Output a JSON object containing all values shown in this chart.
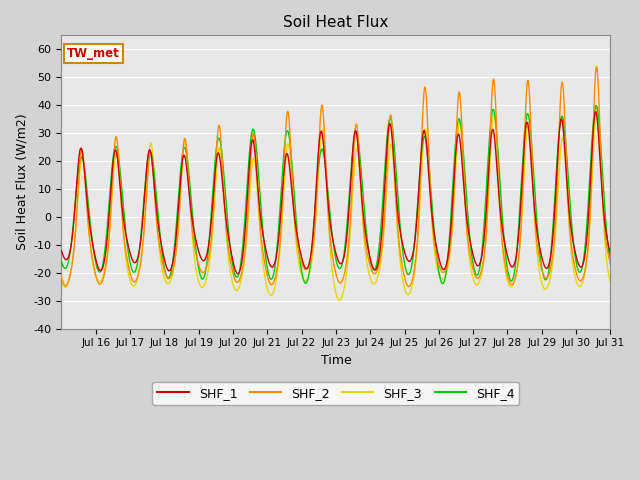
{
  "title": "Soil Heat Flux",
  "xlabel": "Time",
  "ylabel": "Soil Heat Flux (W/m2)",
  "ylim": [
    -40,
    65
  ],
  "background_color": "#d3d3d3",
  "plot_bg_color": "#e8e8e8",
  "grid_color": "#ffffff",
  "annotation_text": "TW_met",
  "annotation_color": "#cc0000",
  "annotation_bg": "#fffff0",
  "annotation_border": "#cc8800",
  "series": {
    "SHF_1": {
      "color": "#cc0000",
      "lw": 1.0
    },
    "SHF_2": {
      "color": "#ff8c00",
      "lw": 1.0
    },
    "SHF_3": {
      "color": "#e8d800",
      "lw": 1.0
    },
    "SHF_4": {
      "color": "#00cc00",
      "lw": 1.0
    }
  },
  "xtick_labels": [
    "Jul 16",
    "Jul 17",
    "Jul 18",
    "Jul 19",
    "Jul 20",
    "Jul 21",
    "Jul 22",
    "Jul 23",
    "Jul 24",
    "Jul 25",
    "Jul 26",
    "Jul 27",
    "Jul 28",
    "Jul 29",
    "Jul 30",
    "Jul 31"
  ],
  "ytick_labels": [
    -40,
    -30,
    -20,
    -10,
    0,
    10,
    20,
    30,
    40,
    50,
    60
  ]
}
